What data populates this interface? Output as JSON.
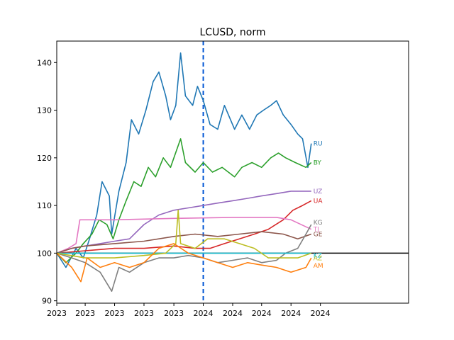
{
  "chart_data": {
    "type": "line",
    "title": "LCUSD, norm",
    "xlabel": "",
    "ylabel": "",
    "x_range": [
      "2023-01-01",
      "2024-12-31"
    ],
    "ylim": [
      89.5,
      144.5
    ],
    "x_ticks": [
      "2023",
      "2023",
      "2023",
      "2023",
      "2023",
      "2024",
      "2024",
      "2024",
      "2024",
      "2024"
    ],
    "x_tick_dates": [
      "2023-01-01",
      "2023-03-01",
      "2023-05-01",
      "2023-07-01",
      "2023-09-01",
      "2023-11-01",
      "2024-01-01",
      "2024-03-01",
      "2024-05-01",
      "2024-07-01"
    ],
    "y_ticks": [
      90,
      100,
      110,
      120,
      130,
      140
    ],
    "grid": false,
    "legend": "none",
    "reference_hline": {
      "y": 100,
      "color": "#000000"
    },
    "reference_vline": {
      "x": "2023-11-01",
      "color": "#0055d4",
      "style": "dashed"
    },
    "series": [
      {
        "name": "RU",
        "color": "#1f77b4",
        "points": [
          [
            "2023-01-01",
            100
          ],
          [
            "2023-01-20",
            97
          ],
          [
            "2023-02-10",
            101
          ],
          [
            "2023-02-25",
            99
          ],
          [
            "2023-03-10",
            103
          ],
          [
            "2023-03-25",
            108
          ],
          [
            "2023-04-05",
            115
          ],
          [
            "2023-04-20",
            112
          ],
          [
            "2023-04-25",
            104
          ],
          [
            "2023-05-10",
            113
          ],
          [
            "2023-05-25",
            119
          ],
          [
            "2023-06-05",
            128
          ],
          [
            "2023-06-20",
            125
          ],
          [
            "2023-07-05",
            130
          ],
          [
            "2023-07-20",
            136
          ],
          [
            "2023-08-01",
            138
          ],
          [
            "2023-08-15",
            133
          ],
          [
            "2023-08-25",
            128
          ],
          [
            "2023-09-05",
            131
          ],
          [
            "2023-09-15",
            142
          ],
          [
            "2023-09-25",
            133
          ],
          [
            "2023-10-10",
            131
          ],
          [
            "2023-10-20",
            135
          ],
          [
            "2023-11-01",
            132
          ],
          [
            "2023-11-15",
            127
          ],
          [
            "2023-12-01",
            126
          ],
          [
            "2023-12-15",
            131
          ],
          [
            "2024-01-05",
            126
          ],
          [
            "2024-01-20",
            129
          ],
          [
            "2024-02-05",
            126
          ],
          [
            "2024-02-20",
            129
          ],
          [
            "2024-03-05",
            130
          ],
          [
            "2024-03-20",
            131
          ],
          [
            "2024-04-01",
            132
          ],
          [
            "2024-04-15",
            129
          ],
          [
            "2024-05-01",
            127
          ],
          [
            "2024-05-15",
            125
          ],
          [
            "2024-05-25",
            124
          ],
          [
            "2024-06-05",
            118
          ],
          [
            "2024-06-12",
            123
          ]
        ]
      },
      {
        "name": "BY",
        "color": "#2ca02c",
        "points": [
          [
            "2023-01-01",
            100
          ],
          [
            "2023-01-20",
            98
          ],
          [
            "2023-02-10",
            100
          ],
          [
            "2023-02-25",
            102
          ],
          [
            "2023-03-15",
            104
          ],
          [
            "2023-03-30",
            107
          ],
          [
            "2023-04-15",
            106
          ],
          [
            "2023-04-28",
            103
          ],
          [
            "2023-05-10",
            107
          ],
          [
            "2023-05-25",
            111
          ],
          [
            "2023-06-10",
            115
          ],
          [
            "2023-06-25",
            114
          ],
          [
            "2023-07-10",
            118
          ],
          [
            "2023-07-25",
            116
          ],
          [
            "2023-08-10",
            120
          ],
          [
            "2023-08-25",
            118
          ],
          [
            "2023-09-15",
            124
          ],
          [
            "2023-09-25",
            119
          ],
          [
            "2023-10-15",
            117
          ],
          [
            "2023-11-01",
            119
          ],
          [
            "2023-11-20",
            117
          ],
          [
            "2023-12-10",
            118
          ],
          [
            "2024-01-05",
            116
          ],
          [
            "2024-01-20",
            118
          ],
          [
            "2024-02-10",
            119
          ],
          [
            "2024-03-01",
            118
          ],
          [
            "2024-03-20",
            120
          ],
          [
            "2024-04-05",
            121
          ],
          [
            "2024-04-20",
            120
          ],
          [
            "2024-05-10",
            119
          ],
          [
            "2024-06-01",
            118
          ],
          [
            "2024-06-12",
            119
          ]
        ]
      },
      {
        "name": "UZ",
        "color": "#9467bd",
        "points": [
          [
            "2023-01-01",
            100
          ],
          [
            "2023-02-01",
            101
          ],
          [
            "2023-03-01",
            101.5
          ],
          [
            "2023-04-01",
            102
          ],
          [
            "2023-05-01",
            102.5
          ],
          [
            "2023-06-01",
            103
          ],
          [
            "2023-07-01",
            106
          ],
          [
            "2023-08-01",
            108
          ],
          [
            "2023-09-01",
            109
          ],
          [
            "2023-10-01",
            109.5
          ],
          [
            "2023-11-01",
            110
          ],
          [
            "2023-12-01",
            110.5
          ],
          [
            "2024-01-01",
            111
          ],
          [
            "2024-02-01",
            111.5
          ],
          [
            "2024-03-01",
            112
          ],
          [
            "2024-04-01",
            112.5
          ],
          [
            "2024-05-01",
            113
          ],
          [
            "2024-06-12",
            113
          ]
        ]
      },
      {
        "name": "UA",
        "color": "#d62728",
        "points": [
          [
            "2023-01-01",
            100
          ],
          [
            "2023-03-01",
            100.5
          ],
          [
            "2023-05-01",
            101
          ],
          [
            "2023-07-01",
            101
          ],
          [
            "2023-09-01",
            101.5
          ],
          [
            "2023-10-15",
            101
          ],
          [
            "2023-11-15",
            101
          ],
          [
            "2023-12-15",
            102
          ],
          [
            "2024-01-15",
            103
          ],
          [
            "2024-02-15",
            104
          ],
          [
            "2024-03-15",
            105
          ],
          [
            "2024-04-15",
            107
          ],
          [
            "2024-05-05",
            109
          ],
          [
            "2024-05-25",
            110
          ],
          [
            "2024-06-12",
            111
          ]
        ]
      },
      {
        "name": "TJ",
        "color": "#e377c2",
        "points": [
          [
            "2023-01-01",
            100
          ],
          [
            "2023-01-25",
            101
          ],
          [
            "2023-02-10",
            102
          ],
          [
            "2023-02-18",
            107
          ],
          [
            "2023-05-01",
            107
          ],
          [
            "2023-09-01",
            107.3
          ],
          [
            "2024-01-01",
            107.5
          ],
          [
            "2024-04-01",
            107.5
          ],
          [
            "2024-05-01",
            107
          ],
          [
            "2024-06-12",
            105
          ]
        ]
      },
      {
        "name": "GE",
        "color": "#8c564b",
        "points": [
          [
            "2023-01-01",
            100
          ],
          [
            "2023-02-01",
            101
          ],
          [
            "2023-03-01",
            101.5
          ],
          [
            "2023-05-01",
            102
          ],
          [
            "2023-07-01",
            102.5
          ],
          [
            "2023-09-01",
            103.5
          ],
          [
            "2023-10-15",
            104
          ],
          [
            "2023-12-01",
            103.5
          ],
          [
            "2024-01-15",
            104
          ],
          [
            "2024-03-01",
            104.5
          ],
          [
            "2024-04-15",
            104
          ],
          [
            "2024-05-15",
            103
          ],
          [
            "2024-06-12",
            104
          ]
        ]
      },
      {
        "name": "KG",
        "color": "#7f7f7f",
        "points": [
          [
            "2023-01-01",
            100
          ],
          [
            "2023-02-01",
            99
          ],
          [
            "2023-03-01",
            98
          ],
          [
            "2023-04-01",
            96
          ],
          [
            "2023-04-25",
            92
          ],
          [
            "2023-05-10",
            97
          ],
          [
            "2023-06-01",
            96
          ],
          [
            "2023-07-01",
            98
          ],
          [
            "2023-08-01",
            99
          ],
          [
            "2023-09-01",
            99
          ],
          [
            "2023-10-01",
            99.5
          ],
          [
            "2023-11-01",
            99
          ],
          [
            "2023-12-01",
            98
          ],
          [
            "2024-01-01",
            98.5
          ],
          [
            "2024-02-01",
            99
          ],
          [
            "2024-03-01",
            98
          ],
          [
            "2024-04-01",
            98.5
          ],
          [
            "2024-04-20",
            100
          ],
          [
            "2024-05-15",
            101
          ],
          [
            "2024-06-01",
            104
          ],
          [
            "2024-06-12",
            106
          ]
        ]
      },
      {
        "name": "KZ",
        "color": "#17becf",
        "points": [
          [
            "2023-01-01",
            100
          ],
          [
            "2023-06-01",
            100
          ],
          [
            "2024-01-01",
            100
          ],
          [
            "2024-06-12",
            100
          ]
        ]
      },
      {
        "name": "AZ",
        "color": "#bcbd22",
        "points": [
          [
            "2023-01-01",
            100
          ],
          [
            "2023-03-01",
            99
          ],
          [
            "2023-05-01",
            99
          ],
          [
            "2023-07-01",
            99.5
          ],
          [
            "2023-08-15",
            100
          ],
          [
            "2023-09-05",
            102
          ],
          [
            "2023-09-10",
            109
          ],
          [
            "2023-09-15",
            102
          ],
          [
            "2023-10-15",
            101
          ],
          [
            "2023-11-10",
            103
          ],
          [
            "2023-12-15",
            103
          ],
          [
            "2024-01-15",
            102
          ],
          [
            "2024-02-15",
            101
          ],
          [
            "2024-03-15",
            99
          ],
          [
            "2024-04-15",
            99
          ],
          [
            "2024-05-15",
            99
          ],
          [
            "2024-06-12",
            100
          ]
        ]
      },
      {
        "name": "AM",
        "color": "#ff7f0e",
        "points": [
          [
            "2023-01-01",
            100
          ],
          [
            "2023-02-01",
            97
          ],
          [
            "2023-02-20",
            94
          ],
          [
            "2023-03-05",
            99
          ],
          [
            "2023-04-01",
            97
          ],
          [
            "2023-05-01",
            98
          ],
          [
            "2023-06-01",
            97
          ],
          [
            "2023-07-01",
            98
          ],
          [
            "2023-08-01",
            101
          ],
          [
            "2023-09-01",
            102
          ],
          [
            "2023-10-01",
            100
          ],
          [
            "2023-11-01",
            99
          ],
          [
            "2023-12-01",
            98
          ],
          [
            "2024-01-01",
            97
          ],
          [
            "2024-02-01",
            98
          ],
          [
            "2024-03-01",
            97.5
          ],
          [
            "2024-04-01",
            97
          ],
          [
            "2024-05-01",
            96
          ],
          [
            "2024-06-01",
            97
          ],
          [
            "2024-06-12",
            99
          ]
        ]
      }
    ]
  }
}
